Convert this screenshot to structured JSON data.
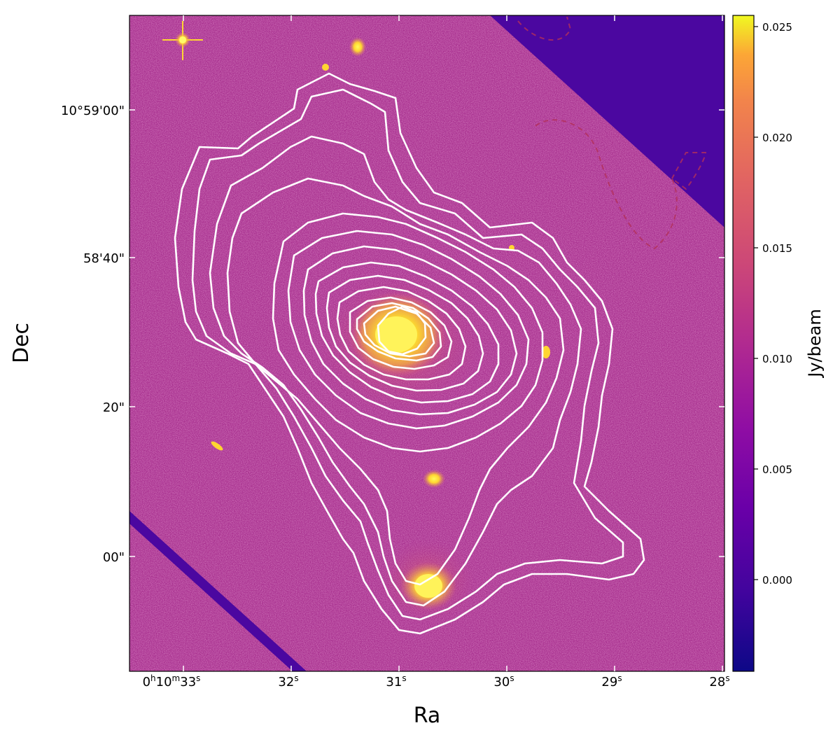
{
  "image": {
    "description_free": true,
    "xlabel": "Ra",
    "ylabel": "Dec",
    "ra_ticks": [
      "0h10m33s",
      "32s",
      "31s",
      "30s",
      "29s",
      "28s"
    ],
    "ra_ticks_parts": [
      {
        "h": "0",
        "m": "10",
        "s": "33"
      },
      {
        "s": "32"
      },
      {
        "s": "31"
      },
      {
        "s": "30"
      },
      {
        "s": "29"
      },
      {
        "s": "28"
      }
    ],
    "dec_ticks": [
      "10°59'00\"",
      "58'40\"",
      "20\"",
      "00\""
    ],
    "colors": {
      "background_magenta": "#a8318f",
      "blank_region": "#4b07a0",
      "contour": "#ffffff",
      "negative_contour": "#b3305a",
      "source_core": "#fff12a"
    }
  },
  "colorbar": {
    "label": "Jy/beam",
    "ticks": [
      "0.025",
      "0.020",
      "0.015",
      "0.010",
      "0.005",
      "0.000"
    ],
    "tick_values": [
      0.025,
      0.02,
      0.015,
      0.01,
      0.005,
      0.0
    ],
    "vmin": -0.0043,
    "vmax": 0.0255,
    "colormap": "plasma"
  }
}
